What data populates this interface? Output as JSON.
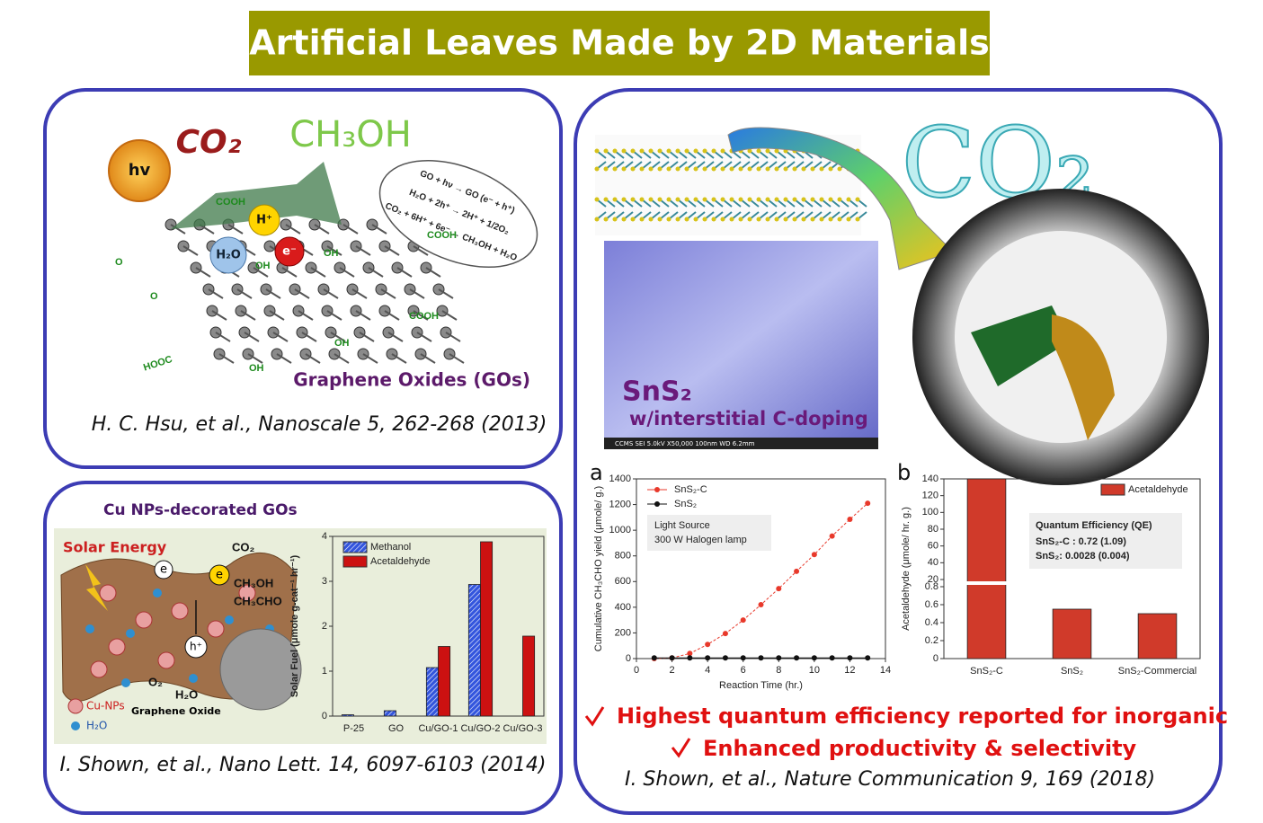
{
  "header": {
    "title": "Artificial Leaves Made by 2D Materials"
  },
  "panels": [
    {
      "labels": {
        "light": "hv",
        "reactant": "CO₂",
        "product": "CH₃OH",
        "hole": "H⁺",
        "water": "H₂O",
        "electron": "e⁻"
      },
      "groups": [
        "COOH",
        "COOH",
        "COOH",
        "HOOC",
        "OH",
        "OH",
        "OH",
        "OH",
        "O",
        "O"
      ],
      "reactions": [
        "GO + hν → GO (e⁻ + h⁺)",
        "H₂O + 2h⁺ → 2H⁺ + 1/2O₂",
        "CO₂ + 6H⁺ + 6e⁻ → CH₃OH + H₂O"
      ],
      "caption": "Graphene Oxides (GOs)",
      "citation": "H. C. Hsu, et al., Nanoscale 5, 262-268 (2013)"
    },
    {
      "heading": "Cu NPs-decorated GOs",
      "labels": {
        "energy": "Solar Energy",
        "reactant": "CO₂",
        "product1": "CH₃OH",
        "product2": "CH₃CHO",
        "electron1": "e",
        "electron2": "e",
        "hole": "h⁺",
        "oxygen": "O₂",
        "water": "H₂O",
        "particles": "Cu-NPs",
        "support": "Graphene Oxide",
        "legend_water": "H₂O"
      },
      "citation": "I. Shown, et al., Nano Lett. 14, 6097-6103 (2014)"
    },
    {
      "labels": {
        "reactant": "CO₂",
        "material": "SnS₂",
        "doping": "w/interstitial C-doping",
        "sem": "CCMS     SEI     5.0kV    X50,000    100nm    WD 6.2mm"
      },
      "highlights": [
        "Highest quantum efficiency reported for inorganic",
        "Enhanced productivity & selectivity"
      ],
      "citation": "I. Shown, et al., Nature Communication 9, 169 (2018)"
    }
  ],
  "chart_data": [
    {
      "type": "bar",
      "categories": [
        "P-25",
        "GO",
        "Cu/GO-1",
        "Cu/GO-2",
        "Cu/GO-3"
      ],
      "series": [
        {
          "name": "Methanol",
          "color": "#3355dd",
          "values": [
            0.03,
            0.12,
            1.08,
            2.93,
            null
          ]
        },
        {
          "name": "Acetaldehyde",
          "color": "#cc1111",
          "values": [
            null,
            null,
            1.55,
            3.88,
            1.78
          ]
        }
      ],
      "ylabel": "Solar Fuel (μmole g-cat⁻¹ hr⁻¹)",
      "ylim": [
        0,
        4
      ],
      "yticks": [
        0,
        1,
        2,
        3,
        4
      ],
      "legend": "upper left"
    },
    {
      "type": "line",
      "panel_label": "a",
      "x": [
        1,
        2,
        3,
        4,
        5,
        6,
        7,
        8,
        9,
        10,
        11,
        12,
        13
      ],
      "series": [
        {
          "name": "SnS₂-C",
          "color": "#e8392b",
          "values": [
            0,
            5,
            40,
            110,
            195,
            300,
            420,
            545,
            680,
            810,
            955,
            1085,
            1210
          ]
        },
        {
          "name": "SnS₂",
          "color": "#111111",
          "values": [
            5,
            5,
            5,
            5,
            5,
            5,
            5,
            5,
            5,
            5,
            5,
            5,
            5
          ]
        }
      ],
      "annotation": [
        "Light Source",
        "300 W Halogen lamp"
      ],
      "xlabel": "Reaction Time (hr.)",
      "ylabel": "Cumulative CH₃CHO yield (μmole/ g.)",
      "xlim": [
        0,
        14
      ],
      "xticks": [
        0,
        2,
        4,
        6,
        8,
        10,
        12,
        14
      ],
      "ylim": [
        0,
        1400
      ],
      "yticks": [
        0,
        200,
        400,
        600,
        800,
        1000,
        1200,
        1400
      ],
      "legend": "upper left"
    },
    {
      "type": "bar",
      "panel_label": "b",
      "categories": [
        "SnS₂-C",
        "SnS₂",
        "SnS₂-Commercial"
      ],
      "series": [
        {
          "name": "Acetaldehyde",
          "color": "#d03a2a",
          "values": [
            140,
            0.55,
            0.5
          ]
        }
      ],
      "ylabel": "Acetaldehyde (μmole/ hr. g.)",
      "ylim": [
        0,
        140
      ],
      "ybreak": [
        0.8,
        20
      ],
      "yticks": [
        0,
        0.2,
        0.4,
        0.6,
        0.8,
        20,
        40,
        60,
        80,
        100,
        120,
        140
      ],
      "annotation": {
        "title": "Quantum Efficiency (QE)",
        "lines": [
          "SnS₂-C : 0.72  (1.09)",
          "SnS₂: 0.0028 (0.004)"
        ]
      },
      "legend": "upper right"
    }
  ]
}
